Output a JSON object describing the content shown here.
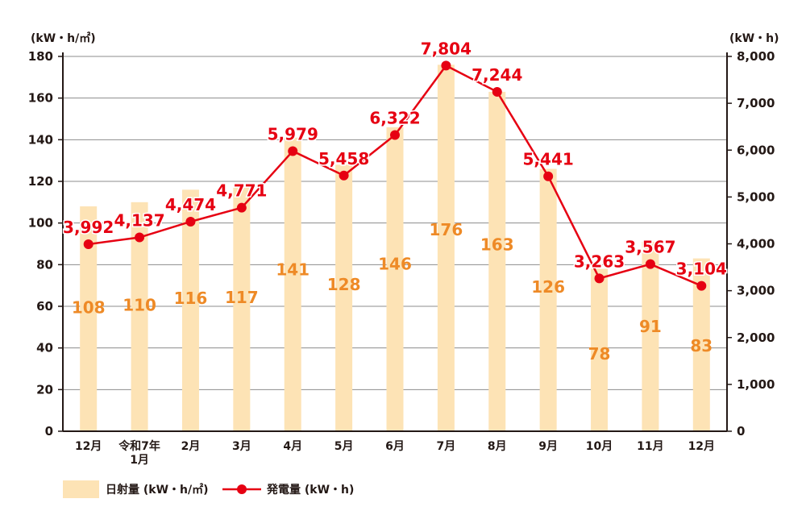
{
  "chart_data": {
    "type": "bar+line",
    "categories": [
      "12月",
      "令和7年\n1月",
      "2月",
      "3月",
      "4月",
      "5月",
      "6月",
      "7月",
      "8月",
      "9月",
      "10月",
      "11月",
      "12月"
    ],
    "series": [
      {
        "name": "日射量 (kW・h/㎡)",
        "type": "bar",
        "axis": "left",
        "values": [
          108,
          110,
          116,
          117,
          141,
          128,
          146,
          176,
          163,
          126,
          78,
          91,
          83
        ],
        "labels": [
          "108",
          "110",
          "116",
          "117",
          "141",
          "128",
          "146",
          "176",
          "163",
          "126",
          "78",
          "91",
          "83"
        ],
        "color": "#fde3b5",
        "label_color": "#ee8a26"
      },
      {
        "name": "発電量 (kW・h)",
        "type": "line",
        "axis": "right",
        "values": [
          3992,
          4137,
          4474,
          4771,
          5979,
          5458,
          6322,
          7804,
          7244,
          5441,
          3263,
          3567,
          3104
        ],
        "labels": [
          "3,992",
          "4,137",
          "4,474",
          "4,771",
          "5,979",
          "5,458",
          "6,322",
          "7,804",
          "7,244",
          "5,441",
          "3,263",
          "3,567",
          "3,104"
        ],
        "color": "#e60012"
      }
    ],
    "left_axis": {
      "unit": "(kW・h/㎡)",
      "range": [
        0,
        180
      ],
      "ticks": [
        0,
        20,
        40,
        60,
        80,
        100,
        120,
        140,
        160,
        180
      ],
      "tick_labels": [
        "0",
        "20",
        "40",
        "60",
        "80",
        "100",
        "120",
        "140",
        "160",
        "180"
      ]
    },
    "right_axis": {
      "unit": "(kW・h)",
      "range": [
        0,
        8000
      ],
      "ticks": [
        0,
        1000,
        2000,
        3000,
        4000,
        5000,
        6000,
        7000,
        8000
      ],
      "tick_labels": [
        "0",
        "1,000",
        "2,000",
        "3,000",
        "4,000",
        "5,000",
        "6,000",
        "7,000",
        "8,000"
      ]
    },
    "grid": true,
    "legend_position": "bottom-left"
  }
}
